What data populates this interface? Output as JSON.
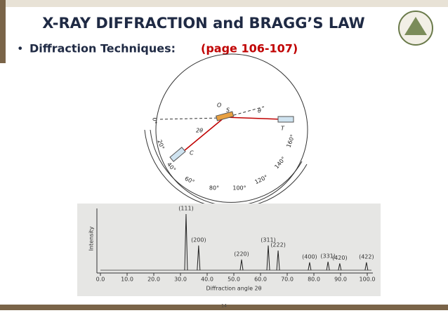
{
  "header": {
    "title": "X-RAY DIFFRACTION and BRAGG’S LAW"
  },
  "bullet": {
    "text": "Diffraction Techniques:",
    "ref": "(page 106-107)"
  },
  "diagram": {
    "points": {
      "O": "O",
      "S": "S",
      "T": "T",
      "C": "C",
      "theta": "θ",
      "two_theta": "2θ"
    },
    "scale_labels": [
      "0°",
      "20°",
      "40°",
      "60°",
      "80°",
      "100°",
      "120°",
      "140°",
      "160°"
    ]
  },
  "xrd": {
    "type": "line",
    "x_label": "Diffraction angle 2θ",
    "y_label": "Intensity",
    "xlim": [
      0,
      100
    ],
    "ylim": [
      0,
      100
    ],
    "xticks": [
      {
        "value": 0,
        "label": "0.0"
      },
      {
        "value": 10,
        "label": "10.0"
      },
      {
        "value": 20,
        "label": "20.0"
      },
      {
        "value": 30,
        "label": "30.0"
      },
      {
        "value": 40,
        "label": "40.0"
      },
      {
        "value": 50,
        "label": "50.0"
      },
      {
        "value": 60,
        "label": "60.0"
      },
      {
        "value": 70,
        "label": "70.0"
      },
      {
        "value": 80,
        "label": "80.0"
      },
      {
        "value": 90,
        "label": "90.0"
      },
      {
        "value": 100,
        "label": "100.0"
      }
    ],
    "peaks": [
      {
        "label": "(111)",
        "x": 32.1,
        "intensity": 100
      },
      {
        "label": "(200)",
        "x": 36.8,
        "intensity": 44
      },
      {
        "label": "(220)",
        "x": 52.9,
        "intensity": 19
      },
      {
        "label": "(311)",
        "x": 62.9,
        "intensity": 44
      },
      {
        "label": "(222)",
        "x": 66.6,
        "intensity": 35
      },
      {
        "label": "(400)",
        "x": 78.4,
        "intensity": 14
      },
      {
        "label": "(331)",
        "x": 85.3,
        "intensity": 15
      },
      {
        "label": "(420)",
        "x": 89.7,
        "intensity": 12
      },
      {
        "label": "(422)",
        "x": 99.7,
        "intensity": 14
      }
    ]
  },
  "footer": {
    "page": "14"
  }
}
